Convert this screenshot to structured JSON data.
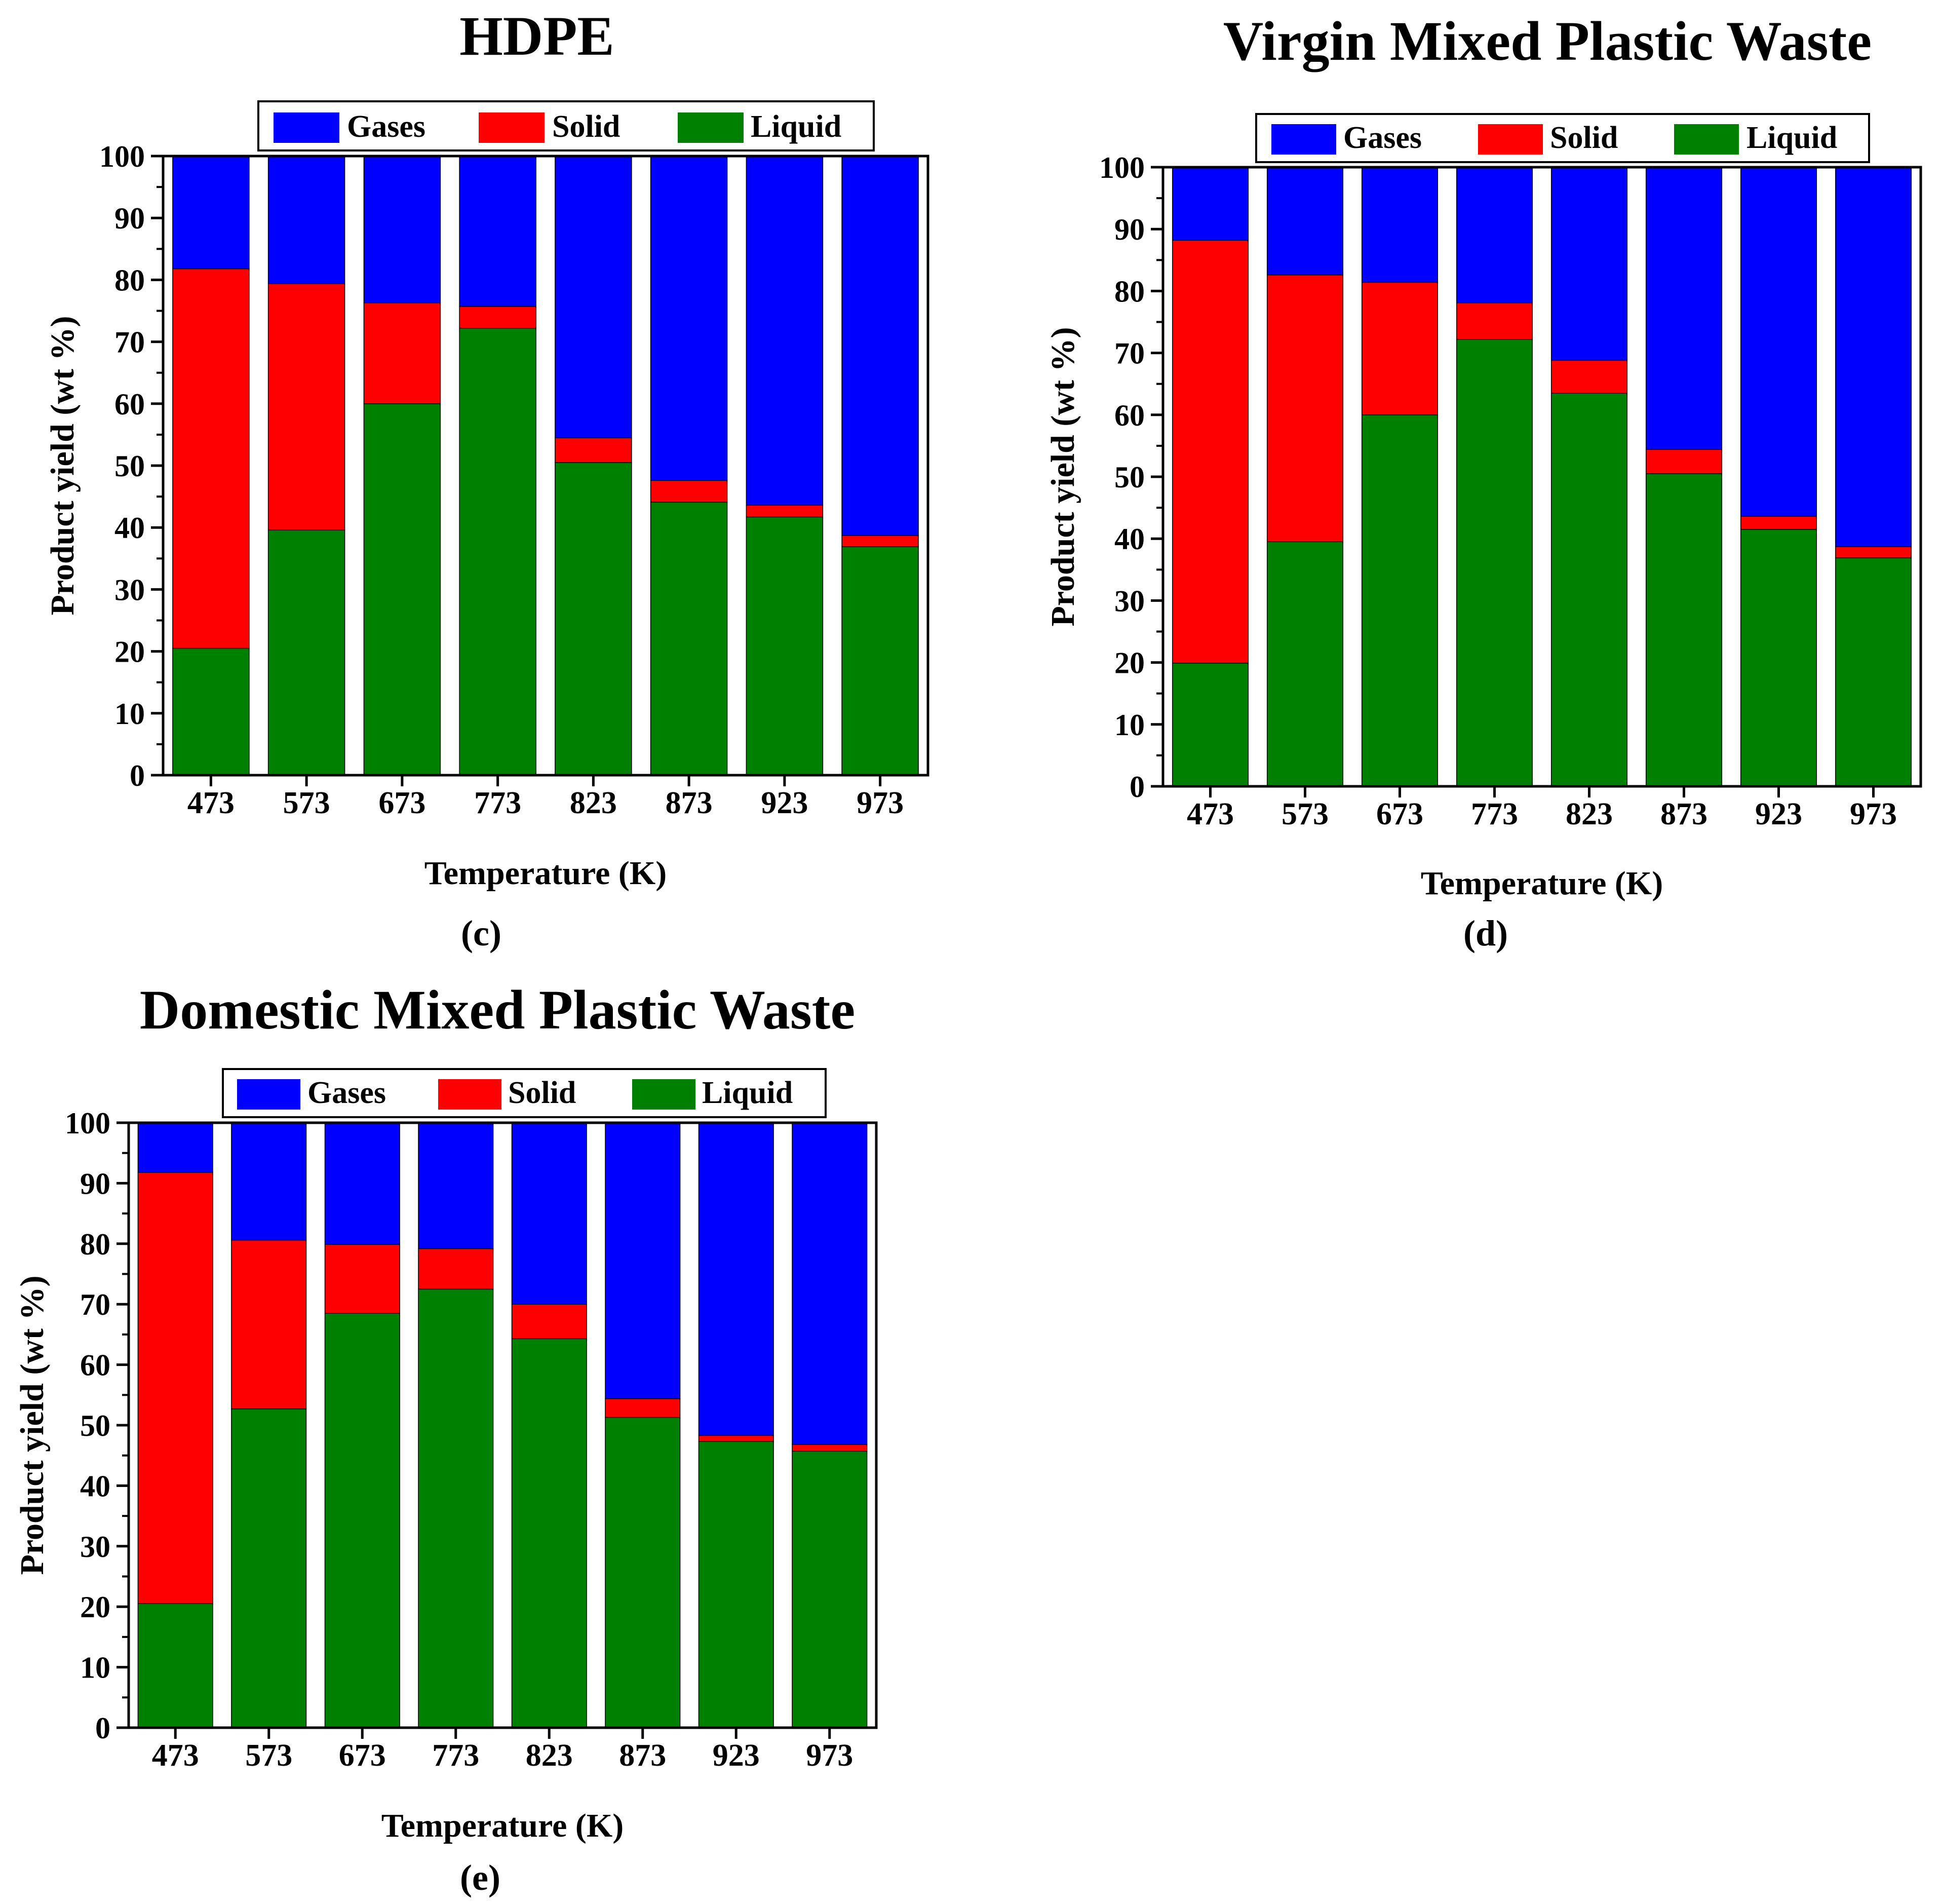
{
  "chart_data": [
    {
      "type": "bar",
      "stacked": true,
      "title": "HDPE",
      "panel_label": "(c)",
      "xlabel": "Temperature (K)",
      "ylabel": "Product yield (wt %)",
      "ylim": [
        0,
        100
      ],
      "yticks": [
        0,
        10,
        20,
        30,
        40,
        50,
        60,
        70,
        80,
        90,
        100
      ],
      "legend_position": "top",
      "categories": [
        "473",
        "573",
        "673",
        "773",
        "823",
        "873",
        "923",
        "973"
      ],
      "series": [
        {
          "name": "Liquid",
          "color": "#008000",
          "values": [
            20.5,
            39.6,
            60.0,
            72.2,
            50.5,
            44.1,
            41.7,
            36.9
          ]
        },
        {
          "name": "Solid",
          "color": "#ff0000",
          "values": [
            61.3,
            39.8,
            16.3,
            3.5,
            4.0,
            3.5,
            1.9,
            1.8
          ]
        },
        {
          "name": "Gases",
          "color": "#0000ff",
          "values": [
            18.2,
            20.6,
            23.7,
            24.3,
            45.5,
            52.4,
            56.4,
            61.3
          ]
        }
      ]
    },
    {
      "type": "bar",
      "stacked": true,
      "title": "Virgin Mixed Plastic Waste",
      "panel_label": "(d)",
      "xlabel": "Temperature (K)",
      "ylabel": "Product yield (wt %)",
      "ylim": [
        0,
        100
      ],
      "yticks": [
        0,
        10,
        20,
        30,
        40,
        50,
        60,
        70,
        80,
        90,
        100
      ],
      "legend_position": "top",
      "categories": [
        "473",
        "573",
        "673",
        "773",
        "823",
        "873",
        "923",
        "973"
      ],
      "series": [
        {
          "name": "Liquid",
          "color": "#008000",
          "values": [
            19.9,
            39.5,
            60.0,
            72.2,
            63.5,
            50.5,
            41.5,
            36.9
          ]
        },
        {
          "name": "Solid",
          "color": "#ff0000",
          "values": [
            68.3,
            43.1,
            21.4,
            5.9,
            5.3,
            3.9,
            2.1,
            1.8
          ]
        },
        {
          "name": "Gases",
          "color": "#0000ff",
          "values": [
            11.8,
            17.4,
            18.6,
            21.9,
            31.2,
            45.6,
            56.4,
            61.3
          ]
        }
      ]
    },
    {
      "type": "bar",
      "stacked": true,
      "title": "Domestic Mixed Plastic Waste",
      "panel_label": "(e)",
      "xlabel": "Temperature (K)",
      "ylabel": "Product yield (wt %)",
      "ylim": [
        0,
        100
      ],
      "yticks": [
        0,
        10,
        20,
        30,
        40,
        50,
        60,
        70,
        80,
        90,
        100
      ],
      "legend_position": "top",
      "categories": [
        "473",
        "573",
        "673",
        "773",
        "823",
        "873",
        "923",
        "973"
      ],
      "series": [
        {
          "name": "Liquid",
          "color": "#008000",
          "values": [
            20.5,
            52.7,
            68.5,
            72.5,
            64.3,
            51.3,
            47.3,
            45.7
          ]
        },
        {
          "name": "Solid",
          "color": "#ff0000",
          "values": [
            71.3,
            27.9,
            11.4,
            6.7,
            5.7,
            3.1,
            1.0,
            1.1
          ]
        },
        {
          "name": "Gases",
          "color": "#0000ff",
          "values": [
            8.2,
            19.4,
            20.1,
            20.8,
            30.0,
            45.6,
            51.7,
            53.2
          ]
        }
      ]
    }
  ]
}
